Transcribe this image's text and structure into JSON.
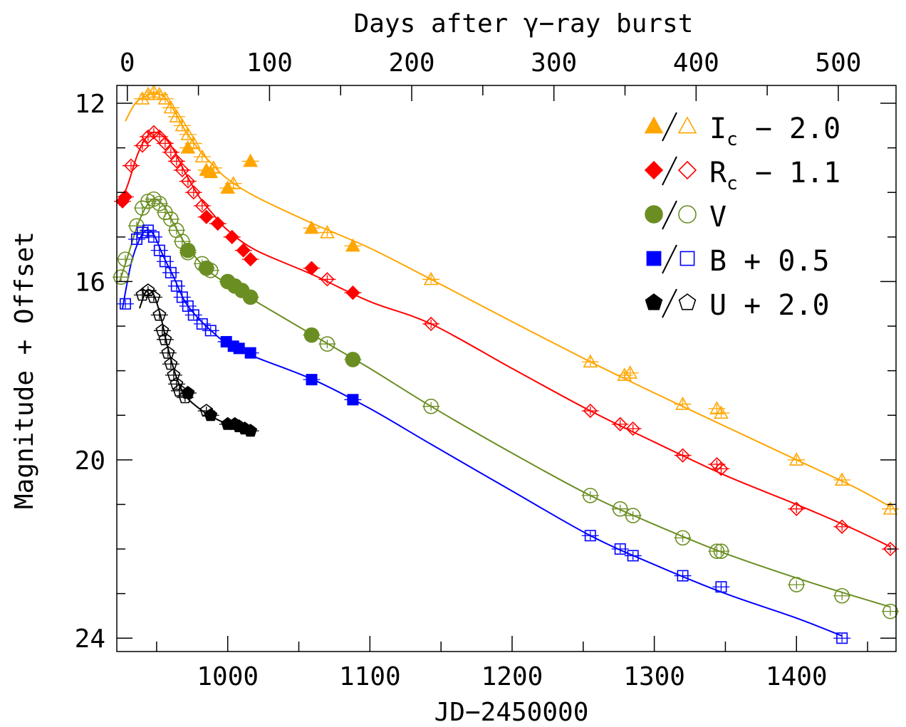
{
  "chart_data": {
    "type": "scatter",
    "xlabel": "JD−2450000",
    "x2label": "Days after γ−ray burst",
    "ylabel": "Magnitude + Offset",
    "xlim": [
      922,
      1470
    ],
    "ylim": [
      24.3,
      11.6
    ],
    "xticks_major": [
      1000,
      1100,
      1200,
      1300,
      1400
    ],
    "x2_offset_jd": 929.4,
    "x2ticks_major": [
      0,
      100,
      200,
      300,
      400,
      500
    ],
    "yticks_major": [
      12,
      16,
      20,
      24
    ],
    "legend_position": "top-right",
    "series": [
      {
        "name": "I",
        "sub": "c",
        "offset_label": " − 2.0",
        "color": "#FFA500",
        "marker": "triangle",
        "filled": [
          [
            1016,
            13.3
          ],
          [
            1059,
            14.8
          ],
          [
            1088,
            15.2
          ],
          [
            1000,
            13.9
          ],
          [
            988,
            13.55
          ],
          [
            972,
            13.0
          ],
          [
            985,
            13.5
          ]
        ],
        "open": [
          [
            940,
            11.9
          ],
          [
            944,
            11.8
          ],
          [
            948,
            11.75
          ],
          [
            952,
            11.8
          ],
          [
            956,
            11.9
          ],
          [
            960,
            12.1
          ],
          [
            964,
            12.3
          ],
          [
            968,
            12.5
          ],
          [
            972,
            12.7
          ],
          [
            976,
            12.9
          ],
          [
            982,
            13.2
          ],
          [
            990,
            13.45
          ],
          [
            1004,
            13.8
          ],
          [
            1070,
            14.9
          ],
          [
            1143,
            15.95
          ],
          [
            1255,
            17.8
          ],
          [
            1279,
            18.1
          ],
          [
            1283,
            18.05
          ],
          [
            1320,
            18.75
          ],
          [
            1344,
            18.85
          ],
          [
            1347,
            18.95
          ],
          [
            1400,
            20.0
          ],
          [
            1432,
            20.45
          ],
          [
            1466,
            21.1
          ]
        ],
        "curve": [
          [
            928,
            12.4
          ],
          [
            935,
            12.0
          ],
          [
            942,
            11.85
          ],
          [
            948,
            11.78
          ],
          [
            955,
            11.85
          ],
          [
            962,
            12.15
          ],
          [
            970,
            12.6
          ],
          [
            980,
            13.05
          ],
          [
            990,
            13.4
          ],
          [
            1000,
            13.7
          ],
          [
            1020,
            14.1
          ],
          [
            1060,
            14.7
          ],
          [
            1100,
            15.25
          ],
          [
            1143,
            15.95
          ],
          [
            1200,
            16.9
          ],
          [
            1255,
            17.8
          ],
          [
            1300,
            18.5
          ],
          [
            1350,
            19.25
          ],
          [
            1400,
            20.0
          ],
          [
            1440,
            20.6
          ],
          [
            1466,
            21.05
          ]
        ]
      },
      {
        "name": "R",
        "sub": "c",
        "offset_label": " − 1.1",
        "color": "#FF0000",
        "marker": "diamond",
        "filled": [
          [
            926,
            14.2
          ],
          [
            928,
            14.1
          ],
          [
            993,
            14.7
          ],
          [
            1003,
            15.0
          ],
          [
            1011,
            15.3
          ],
          [
            1016,
            15.5
          ],
          [
            1059,
            15.7
          ],
          [
            1088,
            16.25
          ],
          [
            985,
            14.55
          ]
        ],
        "open": [
          [
            932,
            13.4
          ],
          [
            940,
            12.95
          ],
          [
            944,
            12.75
          ],
          [
            948,
            12.65
          ],
          [
            952,
            12.75
          ],
          [
            956,
            12.9
          ],
          [
            960,
            13.1
          ],
          [
            964,
            13.3
          ],
          [
            968,
            13.5
          ],
          [
            972,
            13.75
          ],
          [
            976,
            14.0
          ],
          [
            982,
            14.3
          ],
          [
            1070,
            15.95
          ],
          [
            1143,
            16.95
          ],
          [
            1255,
            18.9
          ],
          [
            1276,
            19.2
          ],
          [
            1285,
            19.3
          ],
          [
            1320,
            19.9
          ],
          [
            1344,
            20.1
          ],
          [
            1347,
            20.2
          ],
          [
            1400,
            21.1
          ],
          [
            1432,
            21.5
          ],
          [
            1466,
            22.0
          ]
        ],
        "curve": [
          [
            924,
            14.3
          ],
          [
            930,
            13.8
          ],
          [
            936,
            13.2
          ],
          [
            942,
            12.8
          ],
          [
            948,
            12.65
          ],
          [
            955,
            12.75
          ],
          [
            962,
            13.05
          ],
          [
            970,
            13.55
          ],
          [
            980,
            14.1
          ],
          [
            990,
            14.5
          ],
          [
            1000,
            14.85
          ],
          [
            1020,
            15.3
          ],
          [
            1060,
            15.85
          ],
          [
            1100,
            16.45
          ],
          [
            1143,
            16.95
          ],
          [
            1200,
            17.95
          ],
          [
            1255,
            18.9
          ],
          [
            1300,
            19.6
          ],
          [
            1350,
            20.35
          ],
          [
            1400,
            21.0
          ],
          [
            1440,
            21.55
          ],
          [
            1466,
            21.95
          ]
        ]
      },
      {
        "name": "V",
        "sub": "",
        "offset_label": "",
        "color": "#6B8E23",
        "marker": "circle",
        "filled": [
          [
            1000,
            16.0
          ],
          [
            1005,
            16.1
          ],
          [
            1010,
            16.2
          ],
          [
            1016,
            16.35
          ],
          [
            1059,
            17.2
          ],
          [
            1088,
            17.75
          ],
          [
            985,
            15.7
          ],
          [
            972,
            15.3
          ]
        ],
        "open": [
          [
            925,
            15.9
          ],
          [
            928,
            15.5
          ],
          [
            936,
            14.75
          ],
          [
            940,
            14.35
          ],
          [
            944,
            14.2
          ],
          [
            948,
            14.15
          ],
          [
            952,
            14.25
          ],
          [
            956,
            14.45
          ],
          [
            960,
            14.6
          ],
          [
            964,
            14.85
          ],
          [
            968,
            15.1
          ],
          [
            972,
            15.35
          ],
          [
            982,
            15.6
          ],
          [
            988,
            15.75
          ],
          [
            1070,
            17.4
          ],
          [
            1143,
            18.8
          ],
          [
            1255,
            20.8
          ],
          [
            1276,
            21.1
          ],
          [
            1285,
            21.25
          ],
          [
            1320,
            21.75
          ],
          [
            1344,
            22.05
          ],
          [
            1347,
            22.05
          ],
          [
            1400,
            22.8
          ],
          [
            1432,
            23.05
          ],
          [
            1466,
            23.4
          ]
        ],
        "curve": [
          [
            924,
            16.0
          ],
          [
            930,
            15.4
          ],
          [
            937,
            14.7
          ],
          [
            943,
            14.3
          ],
          [
            948,
            14.15
          ],
          [
            955,
            14.3
          ],
          [
            962,
            14.7
          ],
          [
            970,
            15.15
          ],
          [
            980,
            15.55
          ],
          [
            990,
            15.85
          ],
          [
            1000,
            16.05
          ],
          [
            1020,
            16.45
          ],
          [
            1060,
            17.2
          ],
          [
            1100,
            17.95
          ],
          [
            1143,
            18.8
          ],
          [
            1200,
            19.85
          ],
          [
            1255,
            20.8
          ],
          [
            1300,
            21.45
          ],
          [
            1350,
            22.1
          ],
          [
            1400,
            22.65
          ],
          [
            1440,
            23.05
          ],
          [
            1466,
            23.3
          ]
        ]
      },
      {
        "name": "B",
        "sub": "",
        "offset_label": " + 0.5",
        "color": "#0000FF",
        "marker": "square",
        "filled": [
          [
            999,
            17.35
          ],
          [
            1004,
            17.45
          ],
          [
            1008,
            17.5
          ],
          [
            1016,
            17.6
          ],
          [
            1059,
            18.2
          ],
          [
            1088,
            18.65
          ]
        ],
        "open": [
          [
            928,
            16.5
          ],
          [
            936,
            15.05
          ],
          [
            940,
            14.9
          ],
          [
            944,
            14.85
          ],
          [
            948,
            15.0
          ],
          [
            952,
            15.3
          ],
          [
            956,
            15.55
          ],
          [
            960,
            15.8
          ],
          [
            964,
            16.1
          ],
          [
            968,
            16.35
          ],
          [
            972,
            16.55
          ],
          [
            976,
            16.75
          ],
          [
            982,
            16.95
          ],
          [
            988,
            17.1
          ],
          [
            1255,
            21.7
          ],
          [
            1276,
            22.0
          ],
          [
            1285,
            22.15
          ],
          [
            1320,
            22.6
          ],
          [
            1347,
            22.85
          ],
          [
            1432,
            24.0
          ]
        ],
        "curve": [
          [
            926,
            16.6
          ],
          [
            932,
            15.6
          ],
          [
            938,
            15.05
          ],
          [
            943,
            14.85
          ],
          [
            948,
            14.95
          ],
          [
            955,
            15.45
          ],
          [
            962,
            15.9
          ],
          [
            970,
            16.45
          ],
          [
            980,
            16.85
          ],
          [
            990,
            17.15
          ],
          [
            1000,
            17.4
          ],
          [
            1020,
            17.7
          ],
          [
            1060,
            18.2
          ],
          [
            1100,
            18.85
          ],
          [
            1143,
            19.65
          ],
          [
            1200,
            20.7
          ],
          [
            1255,
            21.7
          ],
          [
            1300,
            22.35
          ],
          [
            1350,
            23.0
          ],
          [
            1400,
            23.55
          ],
          [
            1432,
            23.95
          ]
        ]
      },
      {
        "name": "U",
        "sub": "",
        "offset_label": " + 2.0",
        "color": "#000000",
        "marker": "pentagon",
        "filled": [
          [
            972,
            18.5
          ],
          [
            1000,
            19.2
          ],
          [
            1005,
            19.2
          ],
          [
            1008,
            19.25
          ],
          [
            1012,
            19.3
          ],
          [
            1016,
            19.35
          ],
          [
            988,
            19.0
          ]
        ],
        "open": [
          [
            940,
            16.3
          ],
          [
            944,
            16.2
          ],
          [
            948,
            16.35
          ],
          [
            952,
            16.75
          ],
          [
            954,
            17.1
          ],
          [
            956,
            17.3
          ],
          [
            958,
            17.6
          ],
          [
            960,
            17.85
          ],
          [
            962,
            18.1
          ],
          [
            964,
            18.3
          ],
          [
            966,
            18.45
          ],
          [
            970,
            18.6
          ],
          [
            985,
            18.9
          ]
        ],
        "curve": [
          [
            938,
            16.6
          ],
          [
            943,
            16.2
          ],
          [
            948,
            16.3
          ],
          [
            953,
            16.8
          ],
          [
            958,
            17.5
          ],
          [
            964,
            18.15
          ],
          [
            970,
            18.55
          ],
          [
            980,
            18.85
          ],
          [
            990,
            19.05
          ],
          [
            1000,
            19.2
          ],
          [
            1016,
            19.35
          ]
        ]
      }
    ]
  }
}
